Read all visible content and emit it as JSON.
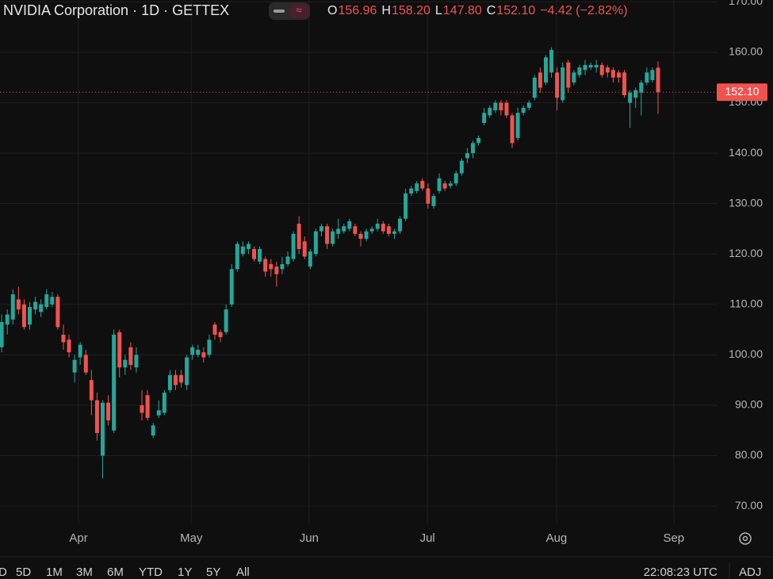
{
  "chart_data": {
    "type": "candlestick",
    "title": "NVIDIA Corporation · 1D · GETTEX",
    "legend_ohlc": [
      {
        "label": "O",
        "value": "156.96"
      },
      {
        "label": "H",
        "value": "158.20"
      },
      {
        "label": "L",
        "value": "147.80"
      },
      {
        "label": "C",
        "value": "152.10"
      }
    ],
    "change": "−4.42 (−2.82%)",
    "up_color": "#26a69a",
    "down_color": "#ef5350",
    "grid": true,
    "categories": [
      null,
      null,
      null,
      null,
      null,
      null,
      null,
      null,
      null,
      null,
      null,
      null,
      null,
      null,
      null,
      null,
      null,
      null,
      null,
      null,
      null,
      null,
      null,
      null,
      null,
      null,
      null,
      null,
      null,
      null,
      null,
      null,
      null,
      null,
      null,
      null,
      null,
      null,
      null,
      null,
      null,
      null,
      null,
      null,
      null,
      null,
      null,
      null,
      null,
      null,
      null,
      null,
      null,
      null,
      null,
      null,
      null,
      null,
      null,
      null,
      null,
      null,
      null,
      null,
      null,
      null,
      null,
      null,
      null,
      null,
      null,
      null,
      null,
      null,
      null,
      null,
      null,
      null,
      null,
      null,
      null,
      null,
      null,
      null,
      null,
      null,
      null,
      null,
      null,
      null,
      null,
      null,
      null,
      null,
      null,
      null,
      null,
      null,
      null,
      null,
      null,
      null,
      null,
      null,
      null,
      null,
      null,
      null,
      null,
      null,
      null,
      null,
      null,
      null,
      null,
      null,
      null,
      null
    ],
    "open": [
      101.5,
      106,
      107,
      111,
      110,
      106,
      109,
      108.5,
      109.5,
      110,
      111.5,
      104,
      103,
      96.5,
      99.5,
      100,
      95,
      91,
      80,
      90.5,
      85,
      104.5,
      97.5,
      101.5,
      97.5,
      90,
      92,
      84,
      88,
      88.5,
      93,
      96,
      96,
      94,
      100,
      100,
      100.5,
      100,
      106,
      104.5,
      104.5,
      110,
      117,
      120,
      121,
      121,
      118.5,
      119,
      118,
      117.5,
      117,
      118,
      119,
      126,
      122.5,
      117.5,
      120,
      124.5,
      125.5,
      122,
      124,
      124.5,
      125,
      125.5,
      124,
      123,
      124.5,
      125,
      126,
      125.5,
      124,
      124.5,
      127,
      132,
      132.5,
      134.5,
      133,
      129.5,
      132.5,
      134,
      133.5,
      134,
      136,
      139,
      140,
      142,
      146,
      147.5,
      148.5,
      150,
      150,
      147.5,
      143,
      148,
      149,
      151,
      156,
      154,
      156,
      156,
      150.5,
      158,
      154,
      155.5,
      156.5,
      157,
      157,
      157.5,
      157,
      156.5,
      156,
      156,
      150,
      151,
      152,
      154,
      154.5,
      156.96
    ],
    "high": [
      108,
      109,
      113,
      113.5,
      111,
      110.5,
      111.5,
      111,
      113,
      112.5,
      112,
      106,
      104,
      100,
      102.5,
      101,
      97,
      92.5,
      91,
      92,
      105,
      105,
      100,
      102.5,
      101.5,
      93,
      93,
      86.5,
      91,
      93,
      97,
      97,
      97,
      100,
      102,
      102,
      101.5,
      104,
      106.5,
      105,
      110,
      118,
      122.5,
      122.5,
      122.5,
      121.5,
      121.5,
      119.5,
      119,
      118.5,
      119.5,
      120.5,
      124.5,
      127.5,
      123.5,
      121,
      125,
      126,
      126,
      125,
      127,
      126,
      127,
      126,
      124.5,
      125,
      125.5,
      127,
      126.5,
      126,
      125,
      127.5,
      133,
      133.5,
      134.5,
      135,
      134,
      132,
      136,
      134.5,
      134.5,
      136.5,
      139,
      141,
      142.5,
      143.5,
      149,
      149.5,
      150.5,
      150.5,
      150.5,
      148,
      149,
      149.5,
      150.5,
      155.5,
      157,
      159.5,
      161,
      157,
      158,
      158.5,
      156.5,
      157.5,
      158.5,
      158,
      158.5,
      158,
      157.5,
      157,
      156.5,
      156.5,
      152.5,
      153,
      154.5,
      157,
      157,
      158.2
    ],
    "low": [
      100.5,
      104,
      106,
      108,
      105,
      105,
      108,
      107.5,
      109,
      109.5,
      105,
      101,
      99.5,
      94.5,
      98,
      96,
      88,
      83,
      75.5,
      86,
      84.5,
      95.5,
      96,
      97,
      96.5,
      87,
      87,
      83.5,
      87.5,
      88,
      92.5,
      93,
      93.5,
      93,
      99,
      99.5,
      98.5,
      99.5,
      103,
      102.5,
      104,
      109.5,
      116.5,
      119.5,
      120,
      118.5,
      118,
      115.5,
      115.5,
      113.5,
      116,
      117.5,
      118.5,
      120,
      119,
      117,
      119.5,
      123.5,
      121,
      121.5,
      123,
      124,
      124.5,
      123.5,
      121.5,
      122.5,
      124,
      124.5,
      124,
      123.5,
      123,
      124,
      126.5,
      131.5,
      132,
      132.5,
      129,
      129,
      132,
      132.5,
      133,
      133.5,
      135.5,
      138,
      139,
      141.5,
      145.5,
      147,
      148,
      147.5,
      147,
      141,
      142.5,
      147.5,
      148.5,
      150.5,
      152,
      153.5,
      155,
      148.5,
      150,
      152,
      153.5,
      155,
      155.5,
      156.5,
      156,
      155,
      155,
      154,
      154,
      151,
      145,
      149,
      147.5,
      153.5,
      154,
      147.8
    ],
    "close": [
      106.5,
      108,
      112,
      109,
      105.5,
      109.5,
      110.5,
      110,
      112,
      111.5,
      105.5,
      102.5,
      100.5,
      99,
      102,
      96.5,
      91,
      84.5,
      90.5,
      87,
      104,
      97.5,
      99,
      98,
      100,
      88.5,
      87.5,
      86,
      89,
      92.5,
      96,
      94,
      94.5,
      99.5,
      101.5,
      101,
      99.5,
      103,
      104,
      103.5,
      109,
      117,
      122,
      121.5,
      122,
      119,
      121,
      116.5,
      117,
      116,
      118,
      119.5,
      124,
      121,
      119.5,
      120.5,
      124.5,
      125.5,
      122,
      124.5,
      125,
      125.5,
      126.5,
      124,
      123,
      124.5,
      125,
      126,
      124.5,
      124,
      124.5,
      127,
      132,
      133,
      134,
      133,
      130,
      131.5,
      135,
      133,
      134,
      136,
      138.5,
      140,
      142,
      143,
      148,
      149,
      150,
      148.5,
      147.5,
      142,
      148,
      149,
      150,
      155,
      153,
      159,
      160.5,
      151,
      157,
      153,
      156,
      157,
      157.5,
      157.5,
      157.5,
      155.5,
      156,
      155,
      155,
      151.5,
      152,
      152.5,
      154,
      156,
      156.5,
      152.1
    ],
    "ylim": [
      66.55,
      170.38
    ],
    "yticks": [
      {
        "value": 70,
        "label": "70.00"
      },
      {
        "value": 80,
        "label": "80.00"
      },
      {
        "value": 90,
        "label": "90.00"
      },
      {
        "value": 100,
        "label": "100.00"
      },
      {
        "value": 110,
        "label": "110.00"
      },
      {
        "value": 120,
        "label": "120.00"
      },
      {
        "value": 130,
        "label": "130.00"
      },
      {
        "value": 140,
        "label": "140.00"
      },
      {
        "value": 150,
        "label": "150.00"
      },
      {
        "value": 160,
        "label": "160.00"
      },
      {
        "value": 170,
        "label": "170.00"
      }
    ],
    "xlim": [
      -0.3,
      127.6
    ],
    "xticks": [
      {
        "value": 13.7,
        "label": "Apr"
      },
      {
        "value": 33.8,
        "label": "May"
      },
      {
        "value": 54.8,
        "label": "Jun"
      },
      {
        "value": 75.9,
        "label": "Jul"
      },
      {
        "value": 98.9,
        "label": "Aug"
      },
      {
        "value": 119.8,
        "label": "Sep"
      }
    ],
    "last_price": {
      "value": 152.1,
      "label": "152.10"
    }
  },
  "toolbar": {
    "ranges": [
      "D",
      "5D",
      "1M",
      "3M",
      "6M",
      "YTD",
      "1Y",
      "5Y",
      "All"
    ],
    "clock": "22:08:23 UTC",
    "adjust": "ADJ"
  }
}
